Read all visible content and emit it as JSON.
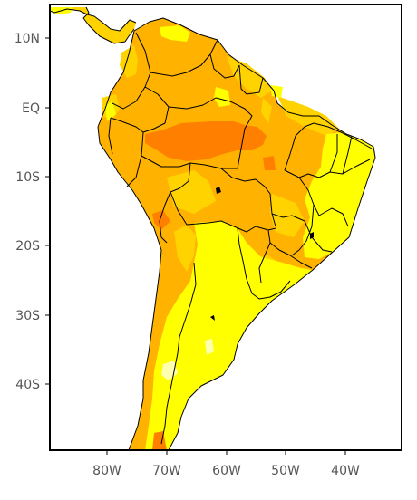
{
  "map": {
    "y_labels": [
      "10N",
      "EQ",
      "10S",
      "20S",
      "30S",
      "40S"
    ],
    "x_labels": [
      "80W",
      "70W",
      "60W",
      "50W",
      "40W"
    ],
    "colors": {
      "ocean": "#ffffff",
      "frame": "#000000",
      "tick_text": "#555555",
      "level_pale": "#ffffb0",
      "level_yellow": "#ffff00",
      "level_yellow_orange": "#ffd300",
      "level_orange": "#ffb300",
      "level_dark_orange": "#ff8000"
    }
  }
}
